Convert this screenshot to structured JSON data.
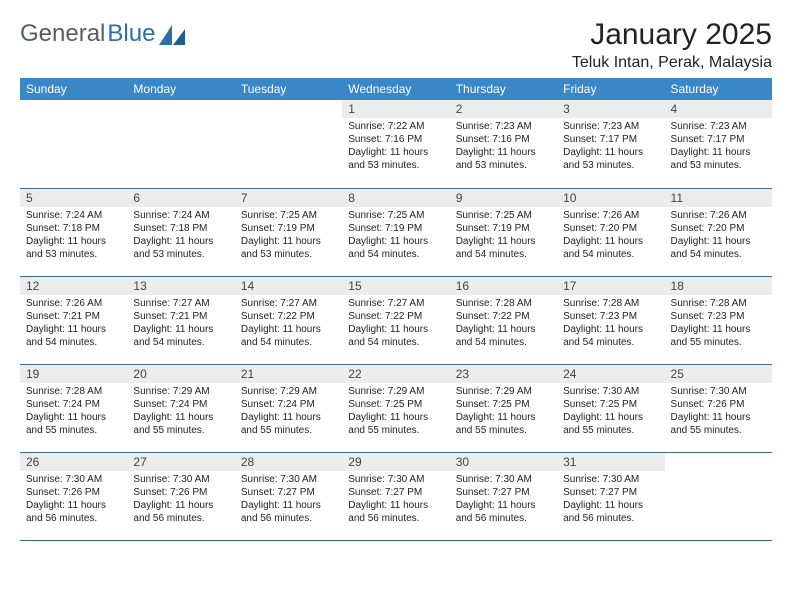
{
  "brand": {
    "word1": "General",
    "word2": "Blue"
  },
  "title": "January 2025",
  "location": "Teluk Intan, Perak, Malaysia",
  "colors": {
    "header_bg": "#3a87c7",
    "header_text": "#ffffff",
    "daynum_bg": "#ececec",
    "rule": "#3a6a94",
    "brand_gray": "#555d66",
    "brand_blue": "#2f6fa7"
  },
  "weekdays": [
    "Sunday",
    "Monday",
    "Tuesday",
    "Wednesday",
    "Thursday",
    "Friday",
    "Saturday"
  ],
  "grid": {
    "leading_blanks": 3,
    "days": [
      {
        "n": 1,
        "sunrise": "7:22 AM",
        "sunset": "7:16 PM",
        "daylight": "11 hours and 53 minutes."
      },
      {
        "n": 2,
        "sunrise": "7:23 AM",
        "sunset": "7:16 PM",
        "daylight": "11 hours and 53 minutes."
      },
      {
        "n": 3,
        "sunrise": "7:23 AM",
        "sunset": "7:17 PM",
        "daylight": "11 hours and 53 minutes."
      },
      {
        "n": 4,
        "sunrise": "7:23 AM",
        "sunset": "7:17 PM",
        "daylight": "11 hours and 53 minutes."
      },
      {
        "n": 5,
        "sunrise": "7:24 AM",
        "sunset": "7:18 PM",
        "daylight": "11 hours and 53 minutes."
      },
      {
        "n": 6,
        "sunrise": "7:24 AM",
        "sunset": "7:18 PM",
        "daylight": "11 hours and 53 minutes."
      },
      {
        "n": 7,
        "sunrise": "7:25 AM",
        "sunset": "7:19 PM",
        "daylight": "11 hours and 53 minutes."
      },
      {
        "n": 8,
        "sunrise": "7:25 AM",
        "sunset": "7:19 PM",
        "daylight": "11 hours and 54 minutes."
      },
      {
        "n": 9,
        "sunrise": "7:25 AM",
        "sunset": "7:19 PM",
        "daylight": "11 hours and 54 minutes."
      },
      {
        "n": 10,
        "sunrise": "7:26 AM",
        "sunset": "7:20 PM",
        "daylight": "11 hours and 54 minutes."
      },
      {
        "n": 11,
        "sunrise": "7:26 AM",
        "sunset": "7:20 PM",
        "daylight": "11 hours and 54 minutes."
      },
      {
        "n": 12,
        "sunrise": "7:26 AM",
        "sunset": "7:21 PM",
        "daylight": "11 hours and 54 minutes."
      },
      {
        "n": 13,
        "sunrise": "7:27 AM",
        "sunset": "7:21 PM",
        "daylight": "11 hours and 54 minutes."
      },
      {
        "n": 14,
        "sunrise": "7:27 AM",
        "sunset": "7:22 PM",
        "daylight": "11 hours and 54 minutes."
      },
      {
        "n": 15,
        "sunrise": "7:27 AM",
        "sunset": "7:22 PM",
        "daylight": "11 hours and 54 minutes."
      },
      {
        "n": 16,
        "sunrise": "7:28 AM",
        "sunset": "7:22 PM",
        "daylight": "11 hours and 54 minutes."
      },
      {
        "n": 17,
        "sunrise": "7:28 AM",
        "sunset": "7:23 PM",
        "daylight": "11 hours and 54 minutes."
      },
      {
        "n": 18,
        "sunrise": "7:28 AM",
        "sunset": "7:23 PM",
        "daylight": "11 hours and 55 minutes."
      },
      {
        "n": 19,
        "sunrise": "7:28 AM",
        "sunset": "7:24 PM",
        "daylight": "11 hours and 55 minutes."
      },
      {
        "n": 20,
        "sunrise": "7:29 AM",
        "sunset": "7:24 PM",
        "daylight": "11 hours and 55 minutes."
      },
      {
        "n": 21,
        "sunrise": "7:29 AM",
        "sunset": "7:24 PM",
        "daylight": "11 hours and 55 minutes."
      },
      {
        "n": 22,
        "sunrise": "7:29 AM",
        "sunset": "7:25 PM",
        "daylight": "11 hours and 55 minutes."
      },
      {
        "n": 23,
        "sunrise": "7:29 AM",
        "sunset": "7:25 PM",
        "daylight": "11 hours and 55 minutes."
      },
      {
        "n": 24,
        "sunrise": "7:30 AM",
        "sunset": "7:25 PM",
        "daylight": "11 hours and 55 minutes."
      },
      {
        "n": 25,
        "sunrise": "7:30 AM",
        "sunset": "7:26 PM",
        "daylight": "11 hours and 55 minutes."
      },
      {
        "n": 26,
        "sunrise": "7:30 AM",
        "sunset": "7:26 PM",
        "daylight": "11 hours and 56 minutes."
      },
      {
        "n": 27,
        "sunrise": "7:30 AM",
        "sunset": "7:26 PM",
        "daylight": "11 hours and 56 minutes."
      },
      {
        "n": 28,
        "sunrise": "7:30 AM",
        "sunset": "7:27 PM",
        "daylight": "11 hours and 56 minutes."
      },
      {
        "n": 29,
        "sunrise": "7:30 AM",
        "sunset": "7:27 PM",
        "daylight": "11 hours and 56 minutes."
      },
      {
        "n": 30,
        "sunrise": "7:30 AM",
        "sunset": "7:27 PM",
        "daylight": "11 hours and 56 minutes."
      },
      {
        "n": 31,
        "sunrise": "7:30 AM",
        "sunset": "7:27 PM",
        "daylight": "11 hours and 56 minutes."
      }
    ],
    "labels": {
      "sunrise": "Sunrise:",
      "sunset": "Sunset:",
      "daylight": "Daylight:"
    }
  }
}
